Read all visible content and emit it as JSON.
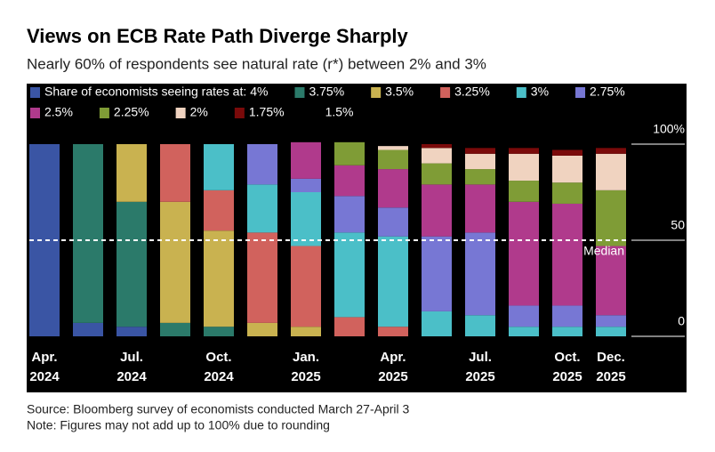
{
  "chart_data": {
    "type": "stacked_bar",
    "title": "Views on ECB Rate Path Diverge Sharply",
    "subtitle": "Nearly 60% of respondents see natural rate (r*) between 2% and 3%",
    "legend_title": "Share of economists seeing rates at:",
    "categories": [
      "Apr. 2024",
      null,
      "Jul. 2024",
      null,
      "Oct. 2024",
      null,
      "Jan. 2025",
      null,
      "Apr. 2025",
      null,
      "Jul. 2025",
      null,
      "Oct. 2025",
      "Dec. 2025"
    ],
    "series": [
      {
        "name": "4%",
        "color": "#3a55a4",
        "values": [
          100,
          7,
          5,
          0,
          0,
          0,
          0,
          0,
          0,
          0,
          0,
          0,
          0,
          0
        ]
      },
      {
        "name": "3.75%",
        "color": "#2b7a6a",
        "values": [
          0,
          93,
          65,
          7,
          5,
          0,
          0,
          0,
          0,
          0,
          0,
          0,
          0,
          0
        ]
      },
      {
        "name": "3.5%",
        "color": "#c9b250",
        "values": [
          0,
          0,
          30,
          63,
          50,
          7,
          5,
          0,
          0,
          0,
          0,
          0,
          0,
          0
        ]
      },
      {
        "name": "3.25%",
        "color": "#d1625d",
        "values": [
          0,
          0,
          0,
          30,
          21,
          47,
          42,
          10,
          5,
          0,
          0,
          0,
          0,
          0
        ]
      },
      {
        "name": "3%",
        "color": "#4bbfc8",
        "values": [
          0,
          0,
          0,
          0,
          24,
          25,
          28,
          44,
          47,
          13,
          11,
          5,
          5,
          5
        ]
      },
      {
        "name": "2.75%",
        "color": "#7777d4",
        "values": [
          0,
          0,
          0,
          0,
          0,
          21,
          7,
          19,
          15,
          39,
          43,
          11,
          11,
          6
        ]
      },
      {
        "name": "2.5%",
        "color": "#b03a8c",
        "values": [
          0,
          0,
          0,
          0,
          0,
          0,
          19,
          16,
          20,
          27,
          25,
          54,
          53,
          36
        ]
      },
      {
        "name": "2.25%",
        "color": "#7f9c36",
        "values": [
          0,
          0,
          0,
          0,
          0,
          0,
          0,
          12,
          10,
          11,
          8,
          11,
          11,
          29
        ]
      },
      {
        "name": "2%",
        "color": "#f0d3c0",
        "values": [
          0,
          0,
          0,
          0,
          0,
          0,
          0,
          0,
          2,
          8,
          8,
          14,
          14,
          19
        ]
      },
      {
        "name": "1.75%",
        "color": "#7a0a0a",
        "values": [
          0,
          0,
          0,
          0,
          0,
          0,
          0,
          0,
          0,
          2,
          3,
          3,
          3,
          3
        ]
      },
      {
        "name": "1.5%",
        "color": "#000000",
        "values": [
          0,
          0,
          0,
          0,
          0,
          0,
          0,
          0,
          0,
          0,
          0,
          0,
          0,
          0
        ]
      }
    ],
    "ylim": [
      0,
      100
    ],
    "yticks": [
      {
        "value": 0,
        "label": "0"
      },
      {
        "value": 50,
        "label": "50"
      },
      {
        "value": 100,
        "label": "100%"
      }
    ],
    "median": 50,
    "median_label": "Median",
    "notes": [
      "Source: Bloomberg survey of economists conducted March 27-April 3",
      "Note: Figures may not add up to 100% due to rounding"
    ]
  }
}
